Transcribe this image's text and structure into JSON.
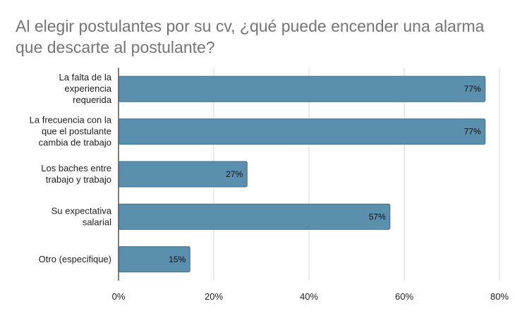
{
  "chart_data": {
    "type": "bar",
    "orientation": "horizontal",
    "title": "Al elegir postulantes por su cv, ¿qué puede encender una alarma que descarte al postulante?",
    "categories": [
      [
        "La falta de la",
        "experiencia",
        "requerida"
      ],
      [
        "La frecuencia con la",
        "que el postulante",
        "cambia de trabajo"
      ],
      [
        "Los baches entre",
        "trabajo y trabajo"
      ],
      [
        "Su expectativa",
        "salarial"
      ],
      [
        "Otro (especifique)"
      ]
    ],
    "values": [
      77,
      77,
      27,
      57,
      15
    ],
    "data_labels": [
      "77%",
      "77%",
      "27%",
      "57%",
      "15%"
    ],
    "xlim": [
      0,
      80
    ],
    "ticks": [
      0,
      20,
      40,
      60,
      80
    ],
    "tick_labels": [
      "0%",
      "20%",
      "40%",
      "60%",
      "80%"
    ],
    "grid": true,
    "colors": {
      "bar": "#5b8fae",
      "bar_stroke": "#3f6f8d",
      "grid": "#d9d9d9",
      "axis": "#555555"
    }
  }
}
